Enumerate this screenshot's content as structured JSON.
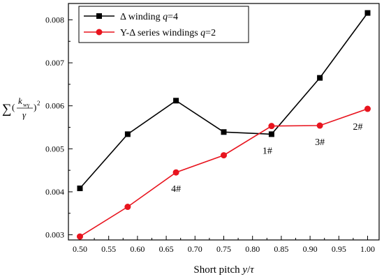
{
  "chart_data": {
    "type": "line",
    "title": "",
    "xlabel_parts": [
      "Short pitch ",
      "y",
      "/",
      "τ"
    ],
    "ylabel_parts": {
      "sum": "∑",
      "numerator": "k",
      "numerator_sub": "wγ",
      "denominator": "γ",
      "exponent": "2"
    },
    "xlim": [
      0.48,
      1.02
    ],
    "ylim": [
      0.00288,
      0.00838
    ],
    "xticks": [
      "0.50",
      "0.55",
      "0.60",
      "0.65",
      "0.70",
      "0.75",
      "0.80",
      "0.85",
      "0.90",
      "0.95",
      "1.00"
    ],
    "yticks": [
      "0.003",
      "0.004",
      "0.005",
      "0.006",
      "0.007",
      "0.008"
    ],
    "series": [
      {
        "name_parts": [
          "Δ winding ",
          "q",
          "=4"
        ],
        "color": "#000000",
        "marker": "square",
        "x": [
          0.5,
          0.583,
          0.667,
          0.75,
          0.833,
          0.917,
          1.0
        ],
        "y": [
          0.00408,
          0.00534,
          0.00612,
          0.00539,
          0.00534,
          0.00665,
          0.00816
        ]
      },
      {
        "name_parts": [
          "Y-Δ series windings ",
          "q",
          "=2"
        ],
        "color": "#e8141e",
        "marker": "circle",
        "x": [
          0.5,
          0.583,
          0.667,
          0.75,
          0.833,
          0.917,
          1.0
        ],
        "y": [
          0.00296,
          0.00365,
          0.00445,
          0.00485,
          0.00553,
          0.00554,
          0.00593
        ]
      }
    ],
    "annotations": [
      {
        "text": "4#",
        "x": 0.667,
        "y": 0.00445
      },
      {
        "text": "1#",
        "x": 0.833,
        "y": 0.00534
      },
      {
        "text": "3#",
        "x": 0.917,
        "y": 0.00554
      },
      {
        "text": "2#",
        "x": 1.0,
        "y": 0.00593
      }
    ],
    "legend": "top-left",
    "grid": false
  }
}
